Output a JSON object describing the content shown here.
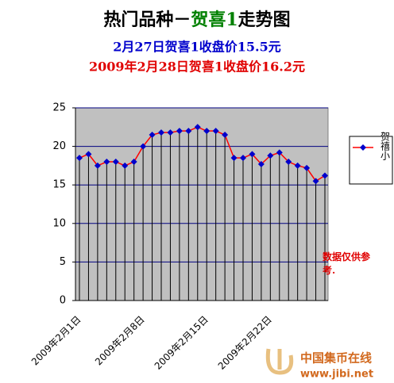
{
  "chart_data": {
    "type": "line",
    "title": [
      "热门品种－",
      "贺喜1",
      "走势图"
    ],
    "subtitle": "2月27日贺喜1收盘价15.5元",
    "subtitle2": "2009年2月28日贺喜1收盘价16.2元",
    "annotation": "数据仅供参考.",
    "categories": [
      "2009年2月1日",
      null,
      null,
      null,
      null,
      null,
      null,
      "2009年2月8日",
      null,
      null,
      null,
      null,
      null,
      null,
      "2009年2月15日",
      null,
      null,
      null,
      null,
      null,
      null,
      "2009年2月22日",
      null,
      null,
      null,
      null,
      null,
      null
    ],
    "series": [
      {
        "name": "贺禧小",
        "color": "#ff0000",
        "marker_color": "#0000cc",
        "values": [
          18.5,
          19.0,
          17.5,
          18.0,
          18.0,
          17.5,
          18.0,
          20.0,
          21.5,
          21.8,
          21.8,
          22.0,
          22.0,
          22.5,
          22.0,
          22.0,
          21.5,
          18.5,
          18.5,
          19.0,
          17.7,
          18.8,
          19.2,
          18.0,
          17.5,
          17.2,
          15.5,
          16.2
        ]
      }
    ],
    "ylim": [
      0,
      25
    ],
    "yticks": [
      0,
      5,
      10,
      15,
      20,
      25
    ],
    "grid": true,
    "grid_color": "#000080",
    "plot_background": "#c0c0c0",
    "drop_lines": true,
    "legend": "right"
  },
  "watermark": {
    "name": "中国集币在线",
    "url": "www.jibi.net"
  }
}
